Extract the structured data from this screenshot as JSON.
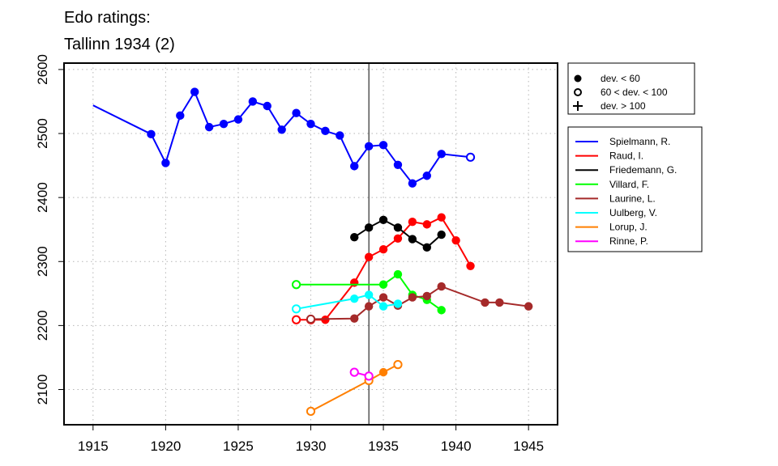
{
  "chart_data": {
    "type": "line",
    "title": [
      "Edo ratings:",
      "Tallinn 1934 (2)"
    ],
    "xlabel": "",
    "ylabel": "",
    "xlim": [
      1913,
      1947
    ],
    "ylim": [
      2045,
      2610
    ],
    "xticks": [
      1915,
      1920,
      1925,
      1930,
      1935,
      1940,
      1945
    ],
    "yticks": [
      2100,
      2200,
      2300,
      2400,
      2500,
      2600
    ],
    "grid": true,
    "vline": 1934,
    "marker_legend": [
      {
        "label": "dev. < 60",
        "symbol": "filled-circle"
      },
      {
        "label": "60 < dev. < 100",
        "symbol": "open-circle"
      },
      {
        "label": "dev. > 100",
        "symbol": "plus"
      }
    ],
    "legend_position": "right",
    "series": [
      {
        "name": "Spielmann, R.",
        "color": "#0000ff",
        "points": [
          {
            "x": 1915,
            "y": 2544,
            "m": "none"
          },
          {
            "x": 1919,
            "y": 2499,
            "m": "filled"
          },
          {
            "x": 1920,
            "y": 2454,
            "m": "filled"
          },
          {
            "x": 1921,
            "y": 2528,
            "m": "filled"
          },
          {
            "x": 1922,
            "y": 2565,
            "m": "filled"
          },
          {
            "x": 1923,
            "y": 2510,
            "m": "filled"
          },
          {
            "x": 1924,
            "y": 2515,
            "m": "filled"
          },
          {
            "x": 1925,
            "y": 2522,
            "m": "filled"
          },
          {
            "x": 1926,
            "y": 2550,
            "m": "filled"
          },
          {
            "x": 1927,
            "y": 2543,
            "m": "filled"
          },
          {
            "x": 1928,
            "y": 2506,
            "m": "filled"
          },
          {
            "x": 1929,
            "y": 2532,
            "m": "filled"
          },
          {
            "x": 1930,
            "y": 2515,
            "m": "filled"
          },
          {
            "x": 1931,
            "y": 2504,
            "m": "filled"
          },
          {
            "x": 1932,
            "y": 2497,
            "m": "filled"
          },
          {
            "x": 1933,
            "y": 2449,
            "m": "filled"
          },
          {
            "x": 1934,
            "y": 2480,
            "m": "filled"
          },
          {
            "x": 1935,
            "y": 2482,
            "m": "filled"
          },
          {
            "x": 1936,
            "y": 2451,
            "m": "filled"
          },
          {
            "x": 1937,
            "y": 2422,
            "m": "filled"
          },
          {
            "x": 1938,
            "y": 2434,
            "m": "filled"
          },
          {
            "x": 1939,
            "y": 2468,
            "m": "filled"
          },
          {
            "x": 1941,
            "y": 2463,
            "m": "open"
          }
        ]
      },
      {
        "name": "Raud, I.",
        "color": "#ff0000",
        "points": [
          {
            "x": 1929,
            "y": 2209,
            "m": "open"
          },
          {
            "x": 1930,
            "y": 2209,
            "m": "open"
          },
          {
            "x": 1931,
            "y": 2209,
            "m": "filled"
          },
          {
            "x": 1933,
            "y": 2267,
            "m": "filled"
          },
          {
            "x": 1934,
            "y": 2307,
            "m": "filled"
          },
          {
            "x": 1935,
            "y": 2319,
            "m": "filled"
          },
          {
            "x": 1936,
            "y": 2336,
            "m": "filled"
          },
          {
            "x": 1937,
            "y": 2362,
            "m": "filled"
          },
          {
            "x": 1938,
            "y": 2358,
            "m": "filled"
          },
          {
            "x": 1939,
            "y": 2369,
            "m": "filled"
          },
          {
            "x": 1940,
            "y": 2333,
            "m": "filled"
          },
          {
            "x": 1941,
            "y": 2293,
            "m": "filled"
          }
        ]
      },
      {
        "name": "Friedemann, G.",
        "color": "#000000",
        "points": [
          {
            "x": 1933,
            "y": 2338,
            "m": "filled"
          },
          {
            "x": 1934,
            "y": 2353,
            "m": "filled"
          },
          {
            "x": 1935,
            "y": 2365,
            "m": "filled"
          },
          {
            "x": 1936,
            "y": 2353,
            "m": "filled"
          },
          {
            "x": 1937,
            "y": 2335,
            "m": "filled"
          },
          {
            "x": 1938,
            "y": 2322,
            "m": "filled"
          },
          {
            "x": 1939,
            "y": 2342,
            "m": "filled"
          }
        ]
      },
      {
        "name": "Villard, F.",
        "color": "#00ff00",
        "points": [
          {
            "x": 1929,
            "y": 2264,
            "m": "open"
          },
          {
            "x": 1935,
            "y": 2264,
            "m": "filled"
          },
          {
            "x": 1936,
            "y": 2280,
            "m": "filled"
          },
          {
            "x": 1937,
            "y": 2248,
            "m": "filled"
          },
          {
            "x": 1938,
            "y": 2240,
            "m": "filled"
          },
          {
            "x": 1939,
            "y": 2224,
            "m": "filled"
          }
        ]
      },
      {
        "name": "Laurine, L.",
        "color": "#a52a2a",
        "points": [
          {
            "x": 1930,
            "y": 2210,
            "m": "open"
          },
          {
            "x": 1933,
            "y": 2211,
            "m": "filled"
          },
          {
            "x": 1934,
            "y": 2230,
            "m": "filled"
          },
          {
            "x": 1935,
            "y": 2244,
            "m": "filled"
          },
          {
            "x": 1936,
            "y": 2231,
            "m": "filled"
          },
          {
            "x": 1937,
            "y": 2244,
            "m": "filled"
          },
          {
            "x": 1938,
            "y": 2246,
            "m": "filled"
          },
          {
            "x": 1939,
            "y": 2261,
            "m": "filled"
          },
          {
            "x": 1942,
            "y": 2236,
            "m": "filled"
          },
          {
            "x": 1943,
            "y": 2236,
            "m": "filled"
          },
          {
            "x": 1945,
            "y": 2230,
            "m": "filled"
          }
        ]
      },
      {
        "name": "Uulberg, V.",
        "color": "#00ffff",
        "points": [
          {
            "x": 1929,
            "y": 2226,
            "m": "open"
          },
          {
            "x": 1933,
            "y": 2242,
            "m": "filled"
          },
          {
            "x": 1934,
            "y": 2248,
            "m": "filled"
          },
          {
            "x": 1935,
            "y": 2230,
            "m": "filled"
          },
          {
            "x": 1936,
            "y": 2234,
            "m": "filled"
          }
        ]
      },
      {
        "name": "Lorup, J.",
        "color": "#ff7f00",
        "points": [
          {
            "x": 1930,
            "y": 2066,
            "m": "open"
          },
          {
            "x": 1934,
            "y": 2114,
            "m": "open"
          },
          {
            "x": 1935,
            "y": 2127,
            "m": "filled"
          },
          {
            "x": 1936,
            "y": 2139,
            "m": "open"
          }
        ]
      },
      {
        "name": "Rinne, P.",
        "color": "#ff00ff",
        "points": [
          {
            "x": 1933,
            "y": 2127,
            "m": "open"
          },
          {
            "x": 1934,
            "y": 2121,
            "m": "open"
          }
        ]
      }
    ]
  }
}
